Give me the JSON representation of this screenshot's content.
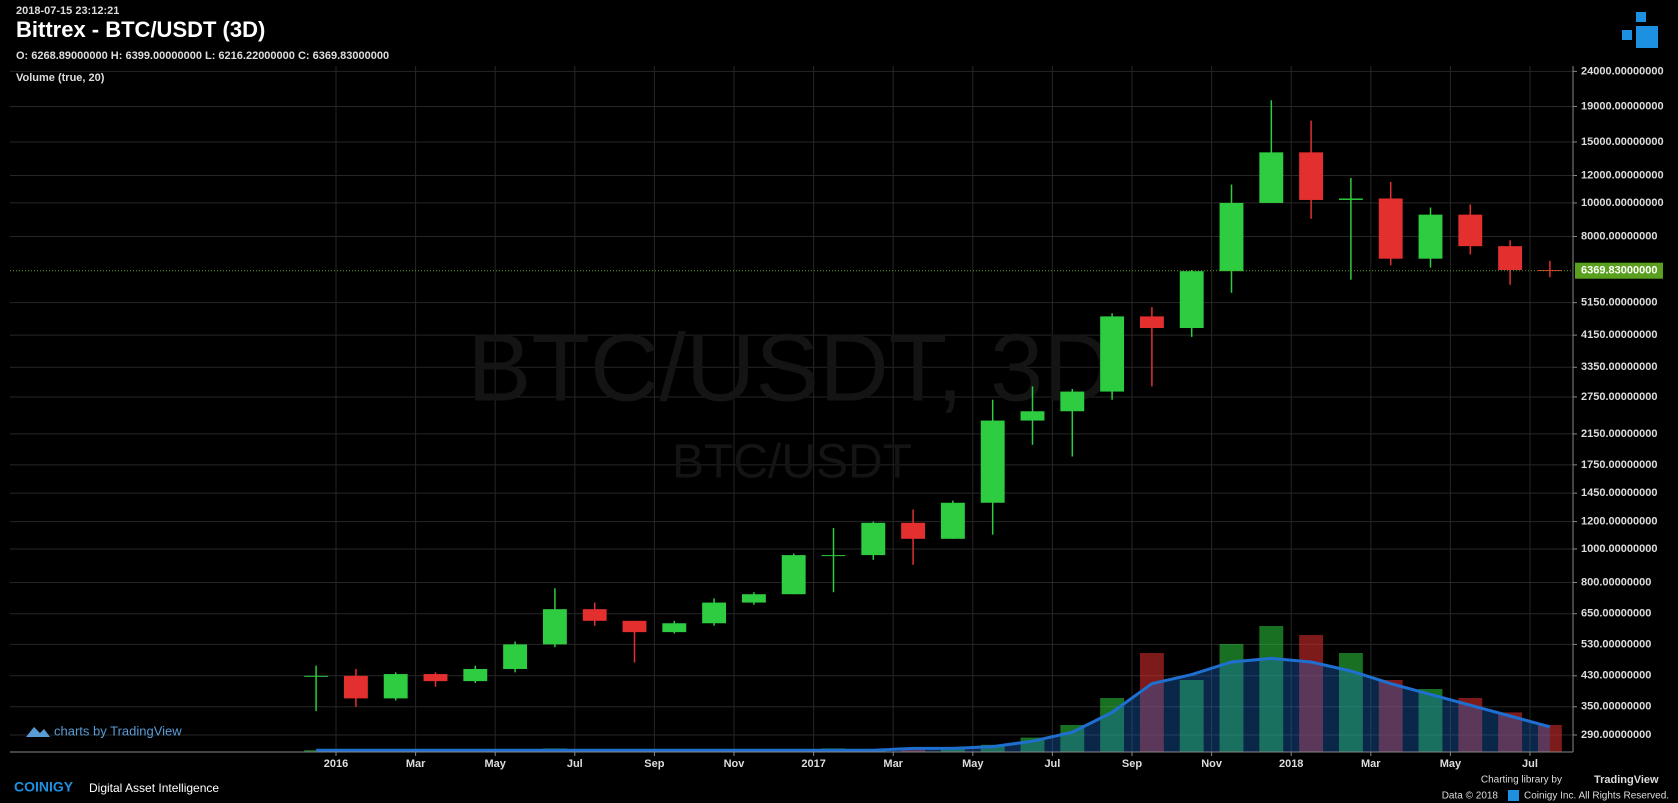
{
  "chart_data": {
    "type": "candlestick",
    "timestamp": "2018-07-15 23:12:21",
    "title": "Bittrex - BTC/USDT (3D)",
    "ohlc_text": "O: 6268.89000000 H: 6399.00000000 L: 6216.22000000 C: 6369.83000000",
    "study_label": "Volume (true, 20)",
    "watermark": "BTC/USDT, 3D",
    "watermark_sub": "BTC/USDT",
    "x": [
      "2015-12",
      "2016-01",
      "2016-02",
      "2016-03",
      "2016-04",
      "2016-05",
      "2016-06",
      "2016-07",
      "2016-08",
      "2016-09",
      "2016-10",
      "2016-11",
      "2016-12",
      "2017-01",
      "2017-02",
      "2017-03",
      "2017-04",
      "2017-05",
      "2017-06",
      "2017-07",
      "2017-08",
      "2017-09",
      "2017-10",
      "2017-11",
      "2017-12",
      "2018-01",
      "2018-02",
      "2018-03",
      "2018-04",
      "2018-05",
      "2018-06",
      "2018-07"
    ],
    "open": [
      430,
      430,
      370,
      435,
      415,
      450,
      530,
      670,
      620,
      575,
      610,
      700,
      740,
      960,
      960,
      1190,
      1070,
      1360,
      2350,
      2500,
      2850,
      4700,
      4350,
      6350,
      10000,
      14000,
      10200,
      10300,
      6900,
      9250,
      7500,
      6400
    ],
    "high": [
      460,
      450,
      440,
      440,
      460,
      540,
      770,
      700,
      620,
      620,
      720,
      750,
      970,
      1150,
      1200,
      1300,
      1380,
      2700,
      2950,
      2900,
      4800,
      5000,
      6400,
      11300,
      19800,
      17300,
      11800,
      11500,
      9700,
      9900,
      7800,
      6800
    ],
    "low": [
      340,
      350,
      365,
      400,
      410,
      440,
      520,
      600,
      470,
      570,
      600,
      690,
      740,
      750,
      930,
      900,
      1070,
      1100,
      2000,
      1850,
      2700,
      2950,
      4100,
      5500,
      10000,
      9000,
      6000,
      6600,
      6500,
      7100,
      5800,
      6100
    ],
    "close": [
      430,
      370,
      435,
      415,
      450,
      530,
      670,
      620,
      575,
      610,
      700,
      740,
      960,
      960,
      1190,
      1070,
      1360,
      2350,
      2500,
      2850,
      4700,
      4350,
      6350,
      10000,
      14000,
      10200,
      10300,
      6900,
      9250,
      7500,
      6400,
      6369.83
    ],
    "volume": [
      1,
      1,
      1,
      1,
      1,
      1,
      2,
      1,
      1,
      1,
      1,
      1,
      1,
      2,
      1,
      2,
      2,
      4,
      8,
      15,
      30,
      55,
      40,
      60,
      70,
      65,
      55,
      40,
      35,
      30,
      22,
      15
    ],
    "volume_ma": [
      1,
      1,
      1,
      1,
      1,
      1,
      1,
      1,
      1,
      1,
      1,
      1,
      1,
      1,
      1,
      2,
      2,
      3,
      6,
      11,
      22,
      38,
      43,
      50,
      52,
      50,
      45,
      38,
      32,
      26,
      20,
      14
    ],
    "volume_lim": [
      0,
      100
    ],
    "up_color": "#2ecc40",
    "down_color": "#e3302f",
    "volume_ma_color": "#1e6fd0",
    "log_scale": true,
    "grid": true,
    "ylim": [
      259,
      24870
    ],
    "yticks": [
      {
        "value": 24000,
        "label": "24000.00000000"
      },
      {
        "value": 19000,
        "label": "19000.00000000"
      },
      {
        "value": 15000,
        "label": "15000.00000000"
      },
      {
        "value": 12000,
        "label": "12000.00000000"
      },
      {
        "value": 10000,
        "label": "10000.00000000"
      },
      {
        "value": 8000,
        "label": "8000.00000000"
      },
      {
        "value": 5150,
        "label": "5150.00000000"
      },
      {
        "value": 4150,
        "label": "4150.00000000"
      },
      {
        "value": 3350,
        "label": "3350.00000000"
      },
      {
        "value": 2750,
        "label": "2750.00000000"
      },
      {
        "value": 2150,
        "label": "2150.00000000"
      },
      {
        "value": 1750,
        "label": "1750.00000000"
      },
      {
        "value": 1450,
        "label": "1450.00000000"
      },
      {
        "value": 1200,
        "label": "1200.00000000"
      },
      {
        "value": 1000,
        "label": "1000.00000000"
      },
      {
        "value": 800,
        "label": "800.00000000"
      },
      {
        "value": 650,
        "label": "650.00000000"
      },
      {
        "value": 530,
        "label": "530.00000000"
      },
      {
        "value": 430,
        "label": "430.00000000"
      },
      {
        "value": 350,
        "label": "350.00000000"
      },
      {
        "value": 290,
        "label": "290.00000000"
      }
    ],
    "last_price": {
      "value": 6369.83,
      "label": "6369.83000000"
    },
    "last_price_color": "#5aa01e",
    "xticks": [
      {
        "value": "2016-01",
        "label": "2016"
      },
      {
        "value": "2016-03",
        "label": "Mar"
      },
      {
        "value": "2016-05",
        "label": "May"
      },
      {
        "value": "2016-07",
        "label": "Jul"
      },
      {
        "value": "2016-09",
        "label": "Sep"
      },
      {
        "value": "2016-11",
        "label": "Nov"
      },
      {
        "value": "2017-01",
        "label": "2017"
      },
      {
        "value": "2017-03",
        "label": "Mar"
      },
      {
        "value": "2017-05",
        "label": "May"
      },
      {
        "value": "2017-07",
        "label": "Jul"
      },
      {
        "value": "2017-09",
        "label": "Sep"
      },
      {
        "value": "2017-11",
        "label": "Nov"
      },
      {
        "value": "2018-01",
        "label": "2018"
      },
      {
        "value": "2018-03",
        "label": "Mar"
      },
      {
        "value": "2018-05",
        "label": "May"
      },
      {
        "value": "2018-07",
        "label": "Jul"
      }
    ]
  },
  "footer": {
    "tv_badge": "charts by TradingView",
    "brand": "COINIGY",
    "tagline": "Digital Asset Intelligence",
    "charting": "Charting library by",
    "tv": "TradingView",
    "data": "Data © 2018",
    "rights": "Coinigy Inc. All Rights Reserved."
  }
}
